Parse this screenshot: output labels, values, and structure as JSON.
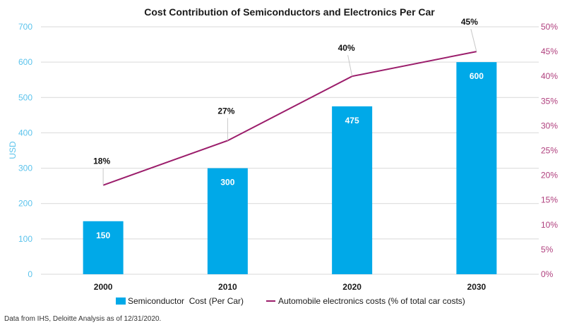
{
  "chart_data": {
    "type": "bar",
    "title": "Cost Contribution of Semiconductors and Electronics Per Car",
    "categories": [
      "2000",
      "2010",
      "2020",
      "2030"
    ],
    "series": [
      {
        "name": "Semiconductor  Cost (Per Car)",
        "type": "bar",
        "axis": "left",
        "color": "#00a9e8",
        "values": [
          150,
          300,
          475,
          600
        ],
        "data_labels": [
          "150",
          "300",
          "475",
          "600"
        ]
      },
      {
        "name": "Automobile electronics costs (% of total car costs)",
        "type": "line",
        "axis": "right",
        "color": "#9b1d6b",
        "values": [
          18,
          27,
          40,
          45
        ],
        "data_labels": [
          "18%",
          "27%",
          "40%",
          "45%"
        ]
      }
    ],
    "ylabel": "USD",
    "ylim": [
      0,
      700
    ],
    "yticks": [
      "0",
      "100",
      "200",
      "300",
      "400",
      "500",
      "600",
      "700"
    ],
    "y2lim": [
      0,
      50
    ],
    "y2ticks": [
      "0%",
      "5%",
      "10%",
      "15%",
      "20%",
      "25%",
      "30%",
      "35%",
      "40%",
      "45%",
      "50%"
    ],
    "grid": "horizontal",
    "legend": "bottom",
    "axis_colors": {
      "left": "#5bc3ec",
      "right": "#b0407e"
    },
    "footnote": "Data from IHS, Deloitte Analysis as of 12/31/2020."
  }
}
